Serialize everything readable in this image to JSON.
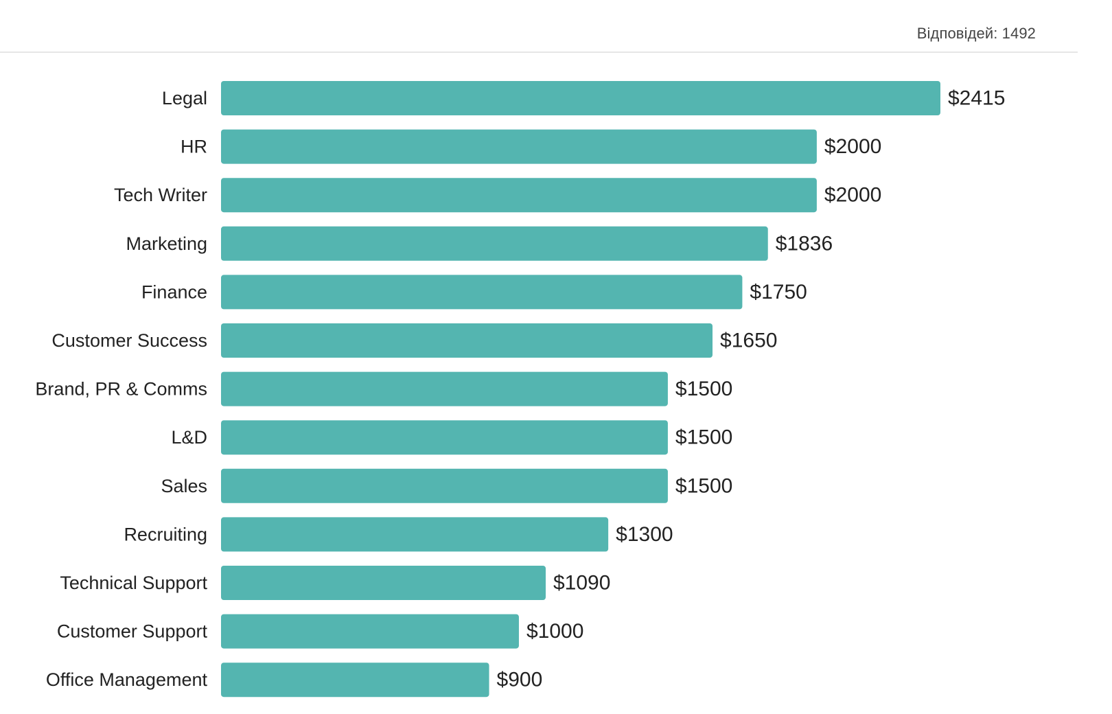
{
  "header": {
    "responses_label": "Відповідей: 1492"
  },
  "colors": {
    "bar": "#54b5b0",
    "divider": "#e6e6e6",
    "text": "#222222"
  },
  "chart_data": {
    "type": "bar",
    "orientation": "horizontal",
    "categories": [
      "Legal",
      "HR",
      "Tech Writer",
      "Marketing",
      "Finance",
      "Customer Success",
      "Brand, PR & Comms",
      "L&D",
      "Sales",
      "Recruiting",
      "Technical Support",
      "Customer Support",
      "Office Management"
    ],
    "values": [
      2415,
      2000,
      2000,
      1836,
      1750,
      1650,
      1500,
      1500,
      1500,
      1300,
      1090,
      1000,
      900
    ],
    "value_labels": [
      "$2415",
      "$2000",
      "$2000",
      "$1836",
      "$1750",
      "$1650",
      "$1500",
      "$1500",
      "$1500",
      "$1300",
      "$1090",
      "$1000",
      "$900"
    ],
    "title": "",
    "xlabel": "",
    "ylabel": "",
    "xlim": [
      0,
      2415
    ],
    "grid": false,
    "legend": "none"
  }
}
